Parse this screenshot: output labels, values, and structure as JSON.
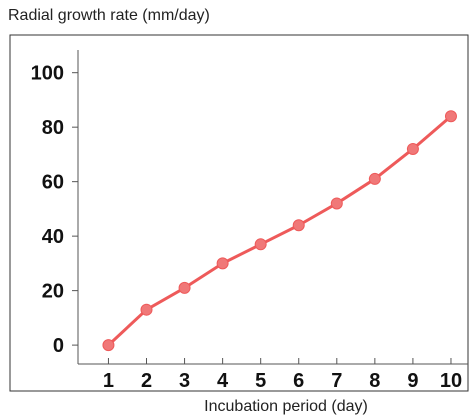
{
  "chart_data": {
    "type": "line",
    "title": "",
    "ylabel": "Radial growth rate (mm/day)",
    "xlabel": "Incubation period (day)",
    "x": [
      1,
      2,
      3,
      4,
      5,
      6,
      7,
      8,
      9,
      10
    ],
    "series": [
      {
        "values": [
          0,
          13,
          21,
          30,
          37,
          44,
          52,
          61,
          72,
          84
        ]
      }
    ],
    "xlim": [
      0.2,
      10.5
    ],
    "ylim": [
      -4,
      112
    ],
    "xticks": [
      "1",
      "2",
      "3",
      "4",
      "5",
      "6",
      "7",
      "8",
      "9",
      "10"
    ],
    "yticks": [
      "0",
      "20",
      "40",
      "60",
      "80",
      "100"
    ],
    "ytick_values": [
      0,
      20,
      40,
      60,
      80,
      100
    ],
    "grid": false,
    "legend": "none",
    "colors": {
      "line": "#ee5a5a",
      "marker": "#f07878",
      "frame": "#333333",
      "text": "#111111"
    }
  }
}
